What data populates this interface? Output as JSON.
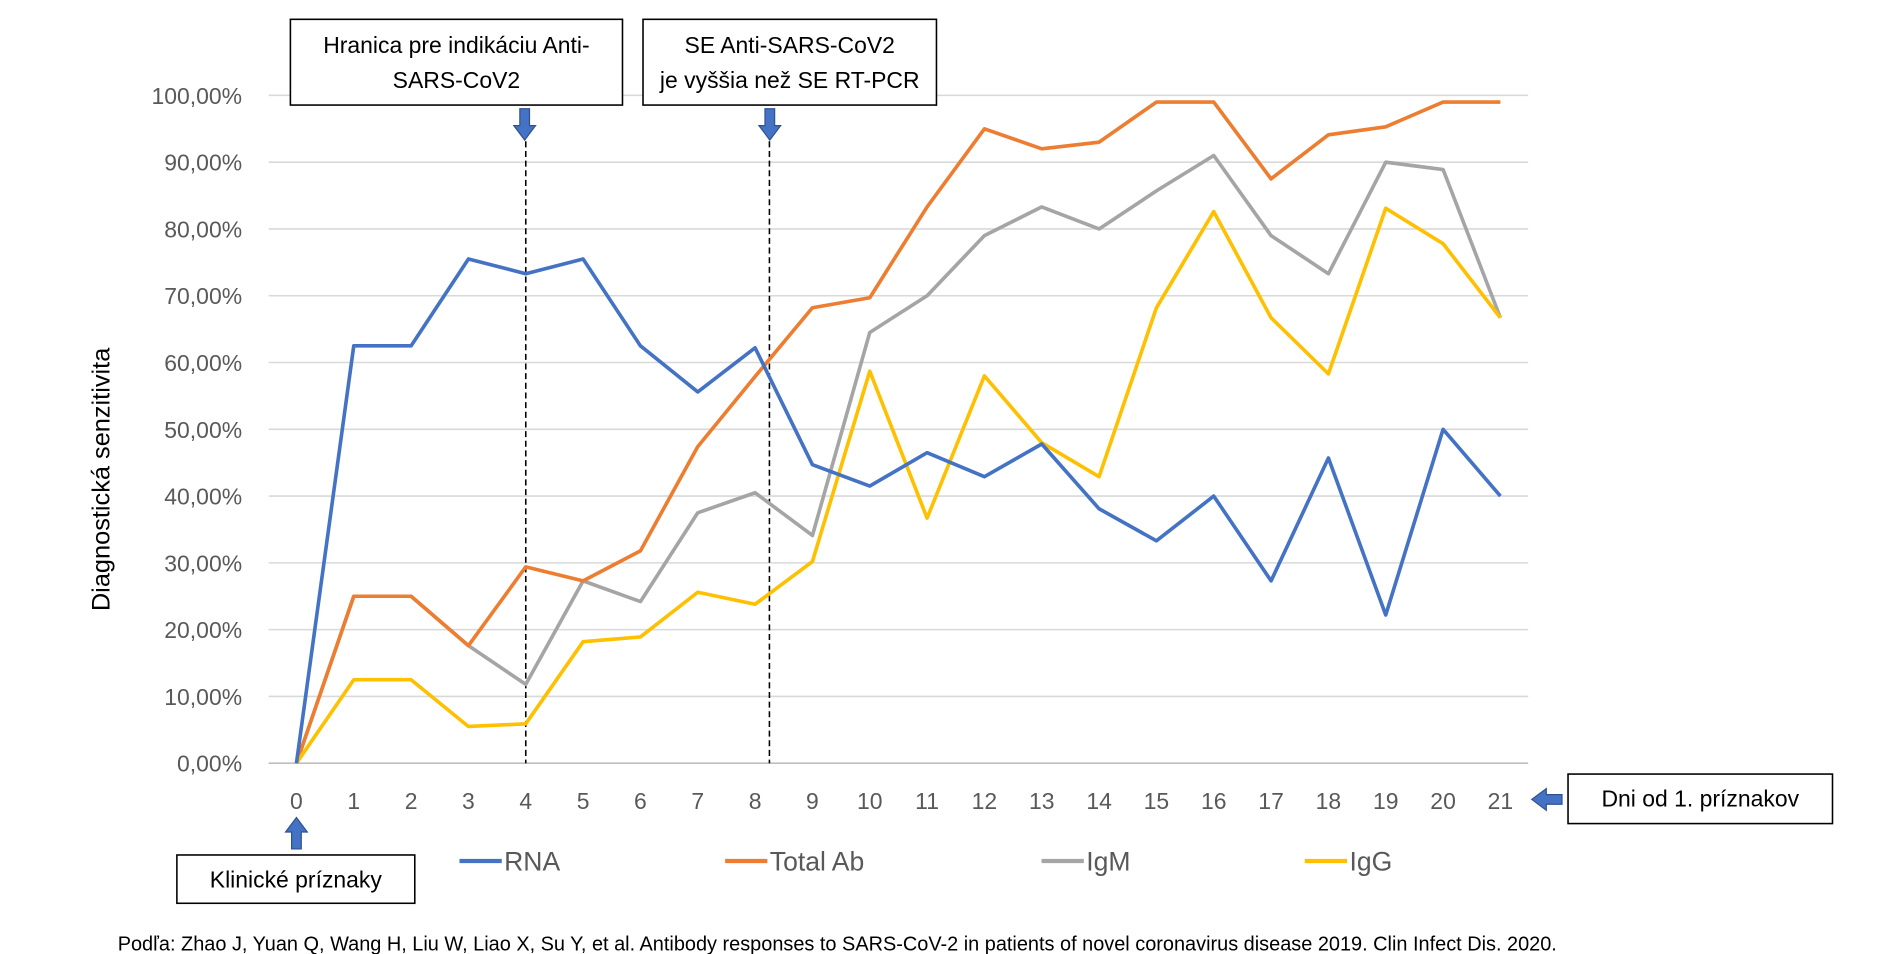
{
  "chart_data": {
    "type": "line",
    "title": "",
    "xlabel": "Dni od 1. príznakov",
    "ylabel": "Diagnostická senzitivita",
    "x": [
      0,
      1,
      2,
      3,
      4,
      5,
      6,
      7,
      8,
      9,
      10,
      11,
      12,
      13,
      14,
      15,
      16,
      17,
      18,
      19,
      20,
      21
    ],
    "x_tick_labels": [
      "0",
      "1",
      "2",
      "3",
      "4",
      "5",
      "6",
      "7",
      "8",
      "9",
      "10",
      "11",
      "12",
      "13",
      "14",
      "15",
      "16",
      "17",
      "18",
      "19",
      "20",
      "21"
    ],
    "y_tick_labels": [
      "0,00%",
      "10,00%",
      "20,00%",
      "30,00%",
      "40,00%",
      "50,00%",
      "60,00%",
      "70,00%",
      "80,00%",
      "90,00%",
      "100,00%"
    ],
    "ylim": [
      0,
      100
    ],
    "y_unit": "%",
    "grid": "horizontal",
    "legend_position": "bottom",
    "series": [
      {
        "name": "RNA",
        "color": "#4472C4",
        "values": [
          0,
          62.5,
          62.5,
          75.5,
          73.3,
          75.5,
          62.5,
          55.6,
          62.2,
          44.7,
          41.5,
          46.5,
          42.9,
          47.8,
          38.1,
          33.3,
          40,
          27.3,
          45.7,
          22.2,
          50,
          40
        ]
      },
      {
        "name": "Total Ab",
        "color": "#ED7D31",
        "values": [
          0,
          25,
          25,
          17.6,
          29.4,
          27.3,
          31.8,
          47.4,
          57.9,
          68.2,
          69.7,
          83.3,
          95,
          92,
          93,
          99,
          99,
          87.5,
          94.1,
          95.3,
          99,
          99
        ]
      },
      {
        "name": "IgM",
        "color": "#A5A5A5",
        "values": [
          0,
          25,
          25,
          17.6,
          11.8,
          27.3,
          24.2,
          37.5,
          40.5,
          34.1,
          64.5,
          70,
          79,
          83.3,
          80,
          85.7,
          91,
          79,
          73.3,
          90,
          88.9,
          66.7
        ]
      },
      {
        "name": "IgG",
        "color": "#FFC000",
        "values": [
          0,
          12.5,
          12.5,
          5.5,
          5.9,
          18.2,
          18.9,
          25.6,
          23.8,
          30.2,
          58.7,
          36.7,
          58,
          48,
          42.9,
          68.2,
          82.6,
          66.7,
          58.3,
          83.1,
          77.8,
          66.7
        ]
      }
    ],
    "annotations": {
      "threshold_line_x": 4,
      "crossover_line_x": 8.25,
      "threshold_box": [
        "Hranica pre indikáciu Anti-",
        "SARS-CoV2"
      ],
      "crossover_box": [
        "SE Anti-SARS-CoV2",
        "je vyššia než SE RT-PCR"
      ],
      "onset_box": "Klinické príznaky",
      "x_axis_box": "Dni od 1. príznakov"
    },
    "footnote": "Podľa: Zhao J, Yuan Q, Wang H, Liu W, Liao X, Su Y, et al. Antibody responses to SARS-CoV-2 in patients of novel coronavirus disease 2019. Clin Infect Dis. 2020."
  }
}
